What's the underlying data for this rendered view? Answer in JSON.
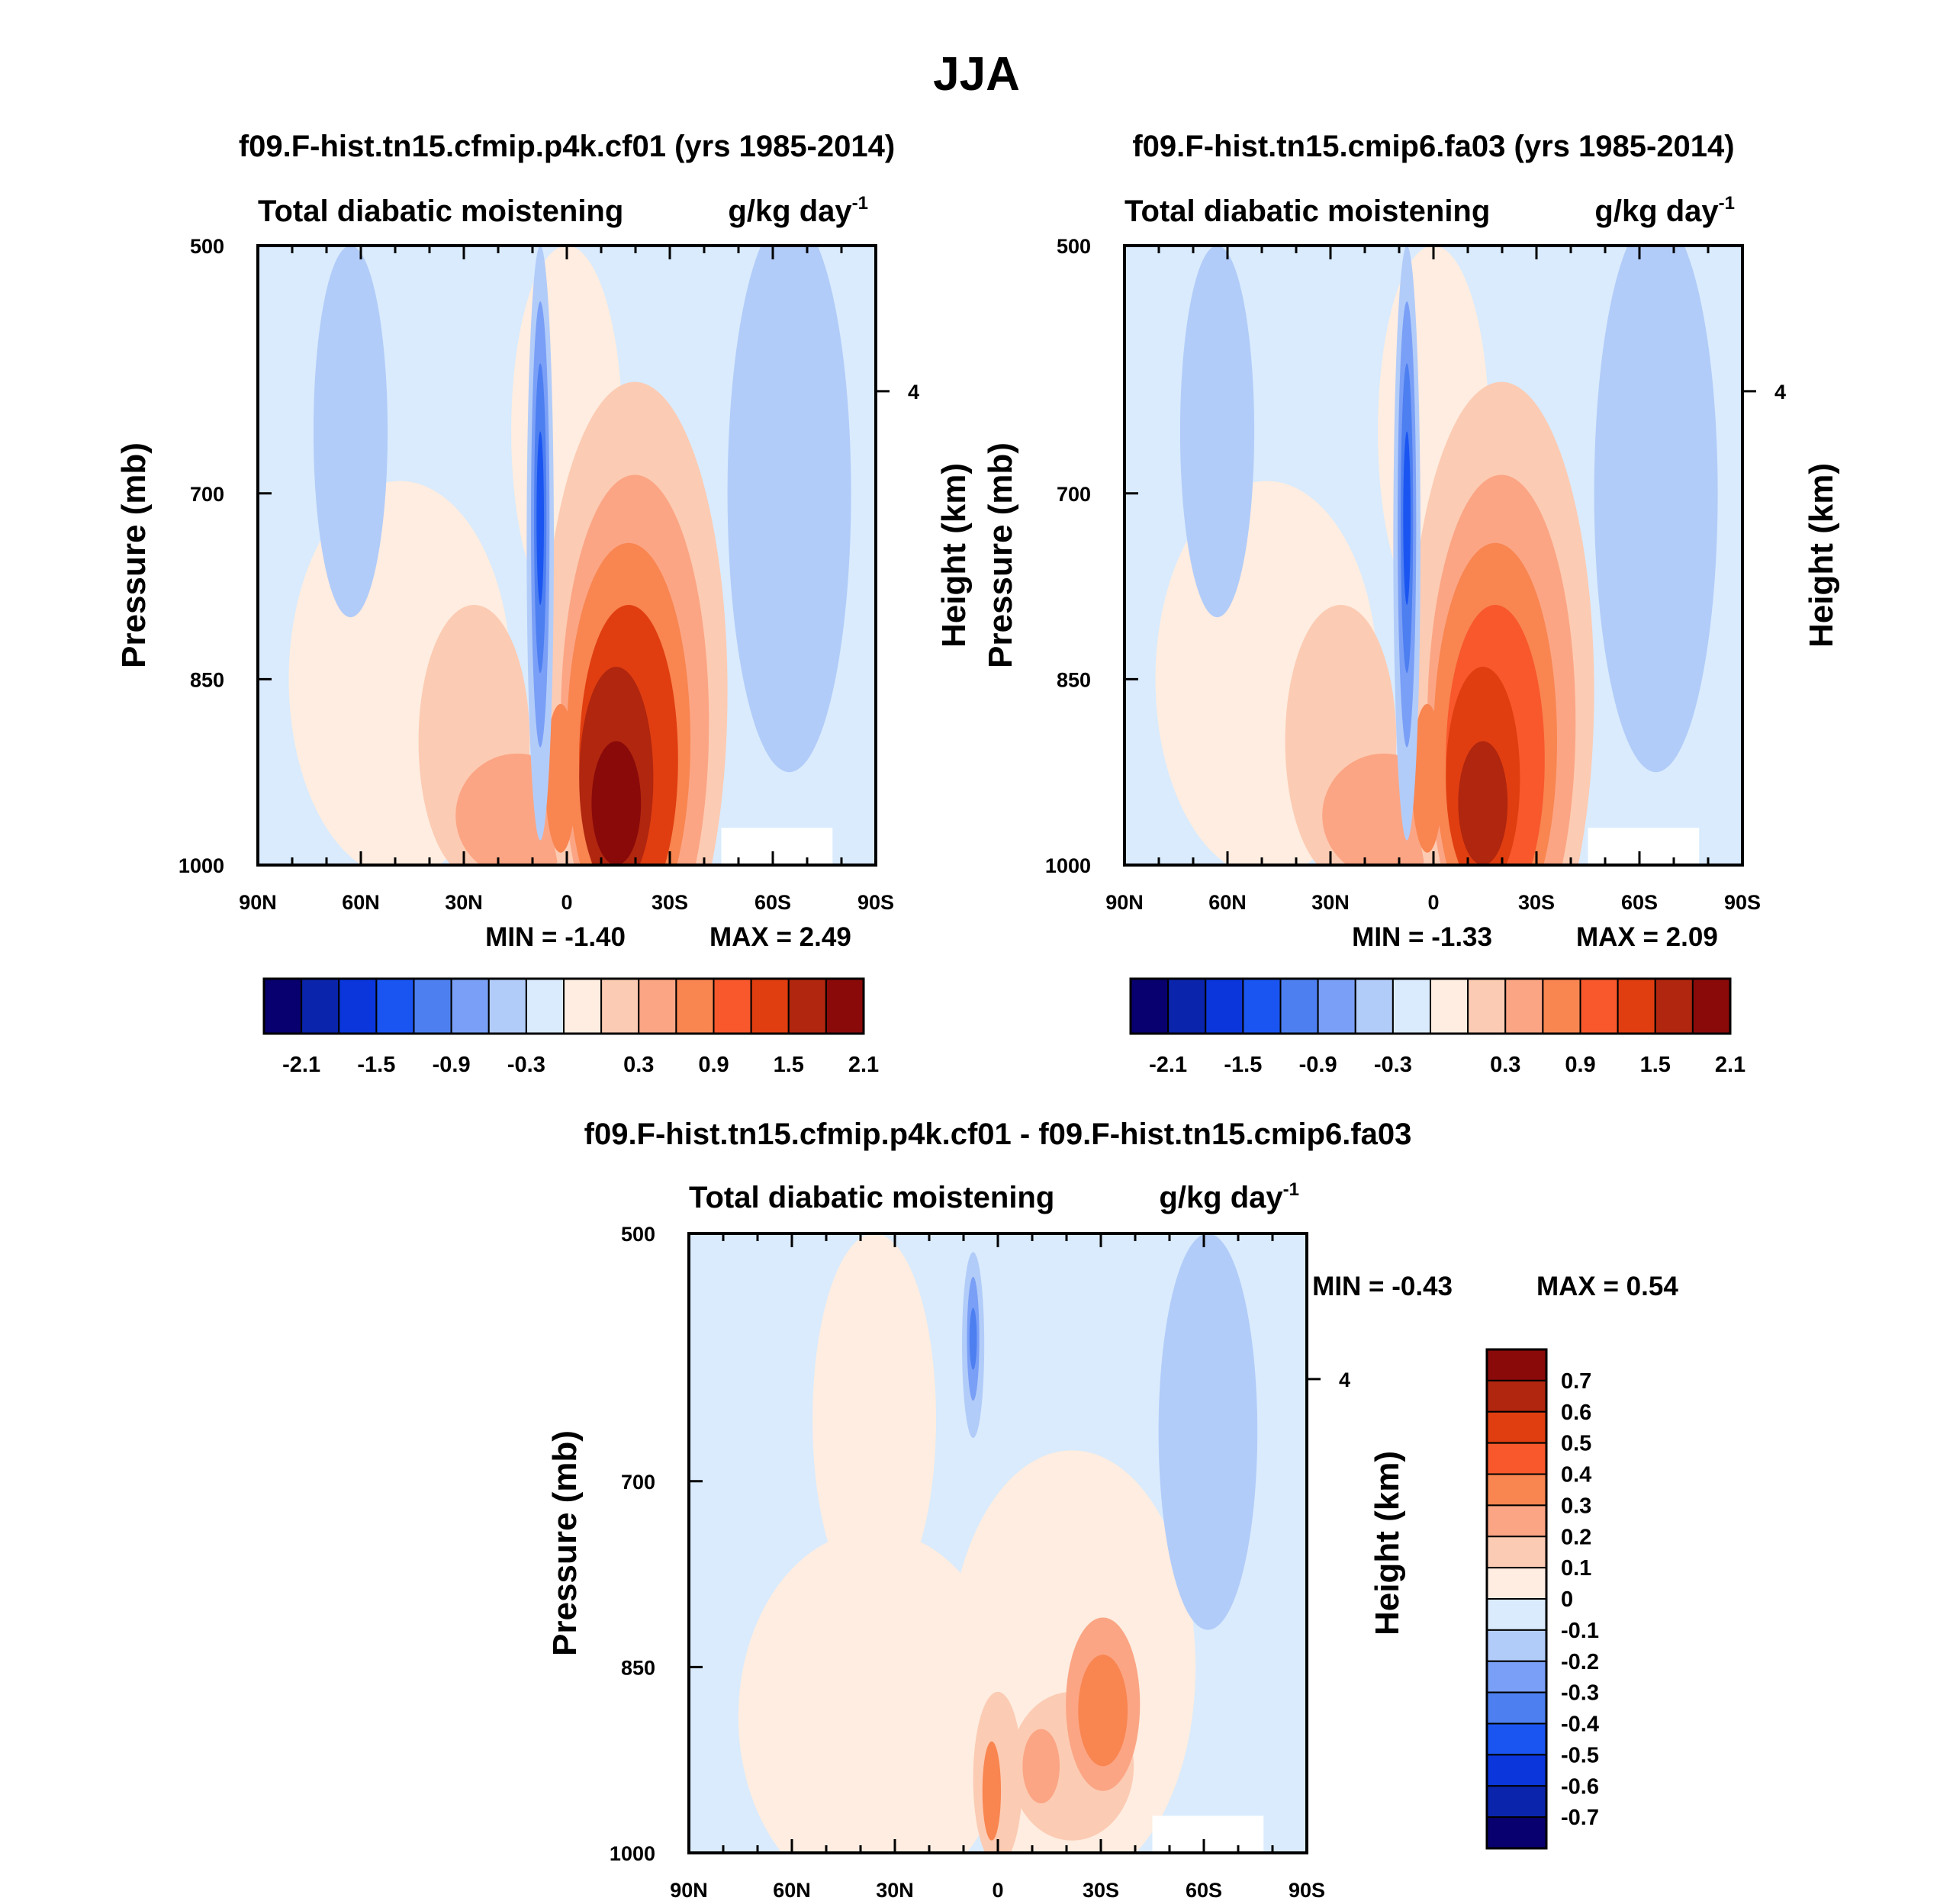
{
  "page_title": "JJA",
  "colors": {
    "cool": [
      "#08006e",
      "#0a25ab",
      "#0a36db",
      "#1b55f1",
      "#4d7ff1",
      "#7a9ff6",
      "#b2ccf9",
      "#d9ebfd"
    ],
    "warm": [
      "#feede0",
      "#fccbb3",
      "#fba584",
      "#f98550",
      "#f8582c",
      "#e03e10",
      "#b0260f",
      "#8a0a0a"
    ]
  },
  "chart_data": [
    {
      "type": "contour",
      "panel": "top-left",
      "case_title": "f09.F-hist.tn15.cfmip.p4k.cf01 (yrs 1985-2014)",
      "variable": "Total diabatic moistening",
      "units": "g/kg day",
      "units_exp": "-1",
      "ylabel": "Pressure (mb)",
      "ylabel_right": "Height (km)",
      "x_ticks": [
        "90N",
        "60N",
        "30N",
        "0",
        "30S",
        "60S",
        "90S"
      ],
      "x_range": [
        90,
        -90
      ],
      "y_ticks": [
        "500",
        "700",
        "850",
        "1000"
      ],
      "y_range": [
        500,
        1000
      ],
      "right_ticks": [
        "4"
      ],
      "min_label": "MIN =  -1.40",
      "max_label": "MAX =   2.49",
      "min": -1.4,
      "max": 2.49,
      "colorbar_levels": [
        -2.4,
        -2.1,
        -1.8,
        -1.5,
        -1.2,
        -0.9,
        -0.6,
        -0.3,
        0,
        0.3,
        0.6,
        0.9,
        1.2,
        1.5,
        1.8,
        2.1,
        2.4
      ],
      "colorbar_labels": [
        "-2.1",
        "-1.5",
        "-0.9",
        "-0.3",
        "0.3",
        "0.9",
        "1.5",
        "2.1"
      ]
    },
    {
      "type": "contour",
      "panel": "top-right",
      "case_title": "f09.F-hist.tn15.cmip6.fa03 (yrs 1985-2014)",
      "variable": "Total diabatic moistening",
      "units": "g/kg day",
      "units_exp": "-1",
      "ylabel": "Pressure (mb)",
      "ylabel_right": "Height (km)",
      "x_ticks": [
        "90N",
        "60N",
        "30N",
        "0",
        "30S",
        "60S",
        "90S"
      ],
      "x_range": [
        90,
        -90
      ],
      "y_ticks": [
        "500",
        "700",
        "850",
        "1000"
      ],
      "y_range": [
        500,
        1000
      ],
      "right_ticks": [
        "4"
      ],
      "min_label": "MIN =  -1.33",
      "max_label": "MAX =   2.09",
      "min": -1.33,
      "max": 2.09,
      "colorbar_levels": [
        -2.4,
        -2.1,
        -1.8,
        -1.5,
        -1.2,
        -0.9,
        -0.6,
        -0.3,
        0,
        0.3,
        0.6,
        0.9,
        1.2,
        1.5,
        1.8,
        2.1,
        2.4
      ],
      "colorbar_labels": [
        "-2.1",
        "-1.5",
        "-0.9",
        "-0.3",
        "0.3",
        "0.9",
        "1.5",
        "2.1"
      ]
    },
    {
      "type": "contour",
      "panel": "bottom",
      "case_title": "f09.F-hist.tn15.cfmip.p4k.cf01 - f09.F-hist.tn15.cmip6.fa03",
      "variable": "Total diabatic moistening",
      "units": "g/kg day",
      "units_exp": "-1",
      "ylabel": "Pressure (mb)",
      "ylabel_right": "Height (km)",
      "x_ticks": [
        "90N",
        "60N",
        "30N",
        "0",
        "30S",
        "60S",
        "90S"
      ],
      "x_range": [
        90,
        -90
      ],
      "y_ticks": [
        "500",
        "700",
        "850",
        "1000"
      ],
      "y_range": [
        500,
        1000
      ],
      "right_ticks": [
        "4"
      ],
      "min_label": "MIN =  -0.43",
      "max_label": "MAX =   0.54",
      "min": -0.43,
      "max": 0.54,
      "colorbar_levels": [
        -0.8,
        -0.7,
        -0.6,
        -0.5,
        -0.4,
        -0.3,
        -0.2,
        -0.1,
        0,
        0.1,
        0.2,
        0.3,
        0.4,
        0.5,
        0.6,
        0.7,
        0.8
      ],
      "colorbar_labels": [
        "0.7",
        "0.6",
        "0.5",
        "0.4",
        "0.3",
        "0.2",
        "0.1",
        "0",
        "-0.1",
        "-0.2",
        "-0.3",
        "-0.4",
        "-0.5",
        "-0.6",
        "-0.7"
      ]
    }
  ]
}
